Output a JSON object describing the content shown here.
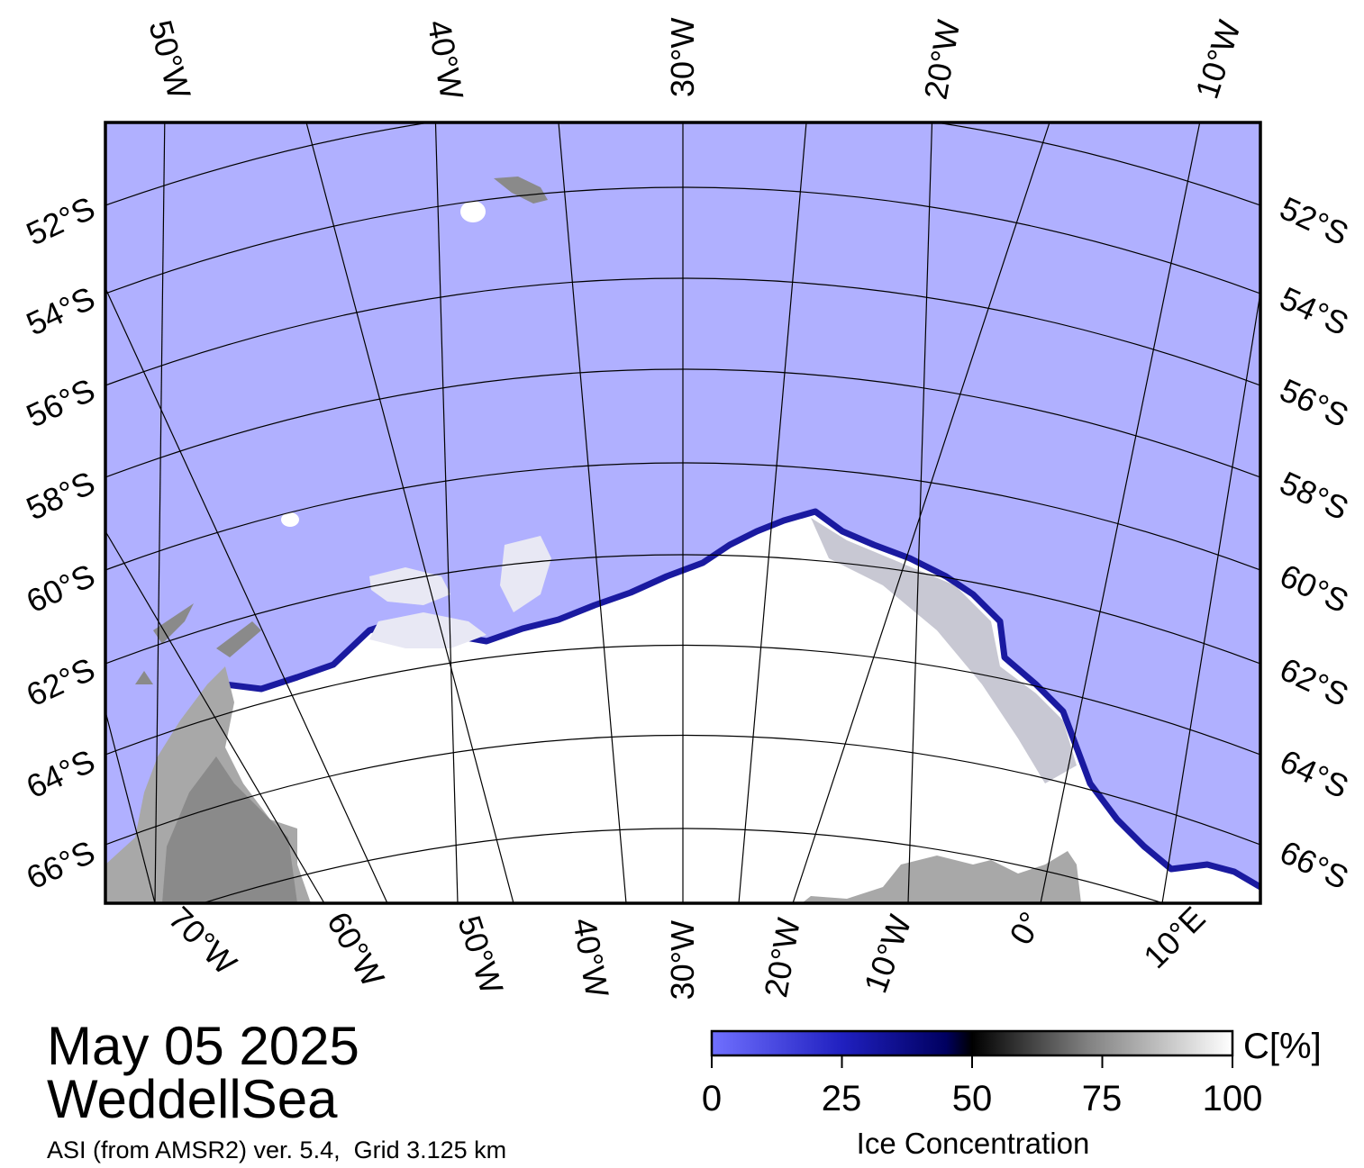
{
  "map": {
    "date": "May 05 2025",
    "region": "WeddellSea",
    "product": "ASI (from AMSR2) ver. 5.4,  Grid 3.125 km",
    "colors": {
      "open_water": "#b0b0ff",
      "land": "#a8a8a8",
      "land_dark": "#8a8a8a",
      "ice_high": "#ffffff",
      "ice_edge": "#1a1aa0",
      "frame": "#000000"
    },
    "top_longitude_labels": [
      "50°W",
      "40°W",
      "30°W",
      "20°W",
      "10°W"
    ],
    "bottom_longitude_labels": [
      "70°W",
      "60°W",
      "50°W",
      "40°W",
      "30°W",
      "20°W",
      "10°W",
      "0°",
      "10°E"
    ],
    "left_latitude_labels": [
      "52°S",
      "54°S",
      "56°S",
      "58°S",
      "60°S",
      "62°S",
      "64°S",
      "66°S"
    ],
    "right_latitude_labels": [
      "52°S",
      "54°S",
      "56°S",
      "58°S",
      "60°S",
      "62°S",
      "64°S",
      "66°S"
    ]
  },
  "colorbar": {
    "title": "Ice Concentration",
    "unit": "C[%]",
    "ticks": [
      "0",
      "25",
      "50",
      "75",
      "100"
    ],
    "min": 0,
    "max": 100,
    "stops": [
      "#7070ff",
      "#2020c0",
      "#000060",
      "#000000",
      "#808080",
      "#ffffff"
    ]
  }
}
